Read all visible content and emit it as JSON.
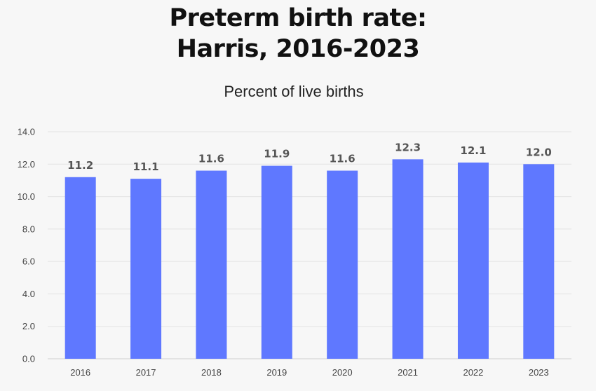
{
  "title_line1": "Preterm birth rate:",
  "title_line2": "Harris, 2016-2023",
  "subtitle": "Percent of live births",
  "chart_data": {
    "type": "bar",
    "categories": [
      "2016",
      "2017",
      "2018",
      "2019",
      "2020",
      "2021",
      "2022",
      "2023"
    ],
    "values": [
      11.2,
      11.1,
      11.6,
      11.9,
      11.6,
      12.3,
      12.1,
      12.0
    ],
    "data_labels": [
      "11.2",
      "11.1",
      "11.6",
      "11.9",
      "11.6",
      "12.3",
      "12.1",
      "12.0"
    ],
    "y_ticks": [
      0,
      2,
      4,
      6,
      8,
      10,
      12,
      14
    ],
    "y_tick_labels": [
      "0.0",
      "2.0",
      "4.0",
      "6.0",
      "8.0",
      "10.0",
      "12.0",
      "14.0"
    ],
    "ylim": [
      0,
      14
    ],
    "grid": true,
    "legend": "none",
    "bar_color": "#5f78ff",
    "grid_color": "#e3e3e3",
    "axis_color": "#cfcfcf"
  }
}
